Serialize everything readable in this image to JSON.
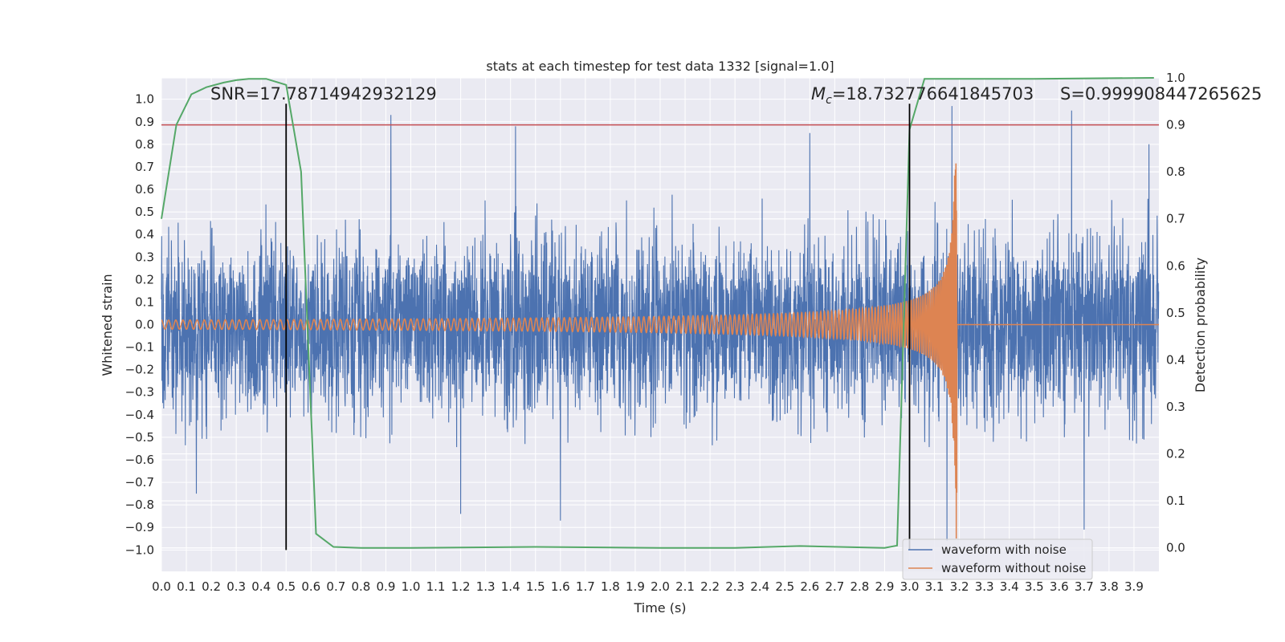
{
  "chart_data": {
    "type": "line",
    "title": "stats at each timestep for test data 1332 [signal=1.0]",
    "xlabel": "Time (s)",
    "ylabel": "Whitened strain",
    "y2label": "Detection probability",
    "xlim": [
      0.0,
      4.0
    ],
    "ylim": [
      -1.095,
      1.095
    ],
    "y2lim": [
      -0.05,
      1.0
    ],
    "x_ticks": [
      "0.0",
      "0.1",
      "0.2",
      "0.3",
      "0.4",
      "0.5",
      "0.6",
      "0.7",
      "0.8",
      "0.9",
      "1.0",
      "1.1",
      "1.2",
      "1.3",
      "1.4",
      "1.5",
      "1.6",
      "1.7",
      "1.8",
      "1.9",
      "2.0",
      "2.1",
      "2.2",
      "2.3",
      "2.4",
      "2.5",
      "2.6",
      "2.7",
      "2.8",
      "2.9",
      "3.0",
      "3.1",
      "3.2",
      "3.3",
      "3.4",
      "3.5",
      "3.6",
      "3.7",
      "3.8",
      "3.9"
    ],
    "y_ticks": [
      "1.0",
      "0.9",
      "0.8",
      "0.7",
      "0.6",
      "0.5",
      "0.4",
      "0.3",
      "0.2",
      "0.1",
      "0.0",
      "−0.1",
      "−0.2",
      "−0.3",
      "−0.4",
      "−0.5",
      "−0.6",
      "−0.7",
      "−0.8",
      "−0.9",
      "−1.0"
    ],
    "y2_ticks": [
      "1.0",
      "0.9",
      "0.8",
      "0.7",
      "0.6",
      "0.5",
      "0.4",
      "0.3",
      "0.2",
      "0.1",
      "0.0"
    ],
    "grid": true,
    "legend_position": "bottom-right",
    "series": [
      {
        "name": "waveform with noise",
        "color": "#4c72b0",
        "axis": "left",
        "description": "noise-dominated whitened strain, approx amplitude 0.2-0.6 with spikes near 0.9",
        "spikes": [
          [
            0.92,
            0.93
          ],
          [
            1.42,
            0.88
          ],
          [
            2.6,
            0.85
          ],
          [
            3.17,
            0.97
          ],
          [
            3.65,
            0.95
          ],
          [
            3.96,
            0.8
          ],
          [
            0.14,
            -0.75
          ],
          [
            1.2,
            -0.84
          ],
          [
            1.6,
            -0.87
          ],
          [
            3.15,
            -0.96
          ],
          [
            3.7,
            -0.91
          ]
        ]
      },
      {
        "name": "waveform without noise",
        "color": "#dd8452",
        "axis": "left",
        "description": "chirp: amplitude ~0.02 rising to ~0.95 at merger t=3.19 s, then flat 0",
        "merger_time": 3.19,
        "start_amplitude": 0.02,
        "peak_amplitude": 0.95
      },
      {
        "name": "detection probability",
        "color": "#55a868",
        "axis": "right",
        "x": [
          0.0,
          0.06,
          0.12,
          0.18,
          0.25,
          0.3,
          0.35,
          0.42,
          0.5,
          0.56,
          0.62,
          0.69,
          0.8,
          1.0,
          1.5,
          2.0,
          2.3,
          2.56,
          2.9,
          2.95,
          3.0,
          3.06,
          3.2,
          3.5,
          3.98
        ],
        "values": [
          0.7,
          0.9,
          0.965,
          0.98,
          0.99,
          0.995,
          0.998,
          0.998,
          0.985,
          0.8,
          0.03,
          0.002,
          0.0,
          0.0,
          0.002,
          0.0,
          0.0,
          0.004,
          0.0,
          0.005,
          0.89,
          0.998,
          0.998,
          0.998,
          1.0
        ]
      }
    ],
    "threshold_line": {
      "value": 0.9,
      "axis": "right",
      "color": "#c44e52"
    },
    "vertical_markers": [
      0.5,
      3.0
    ],
    "annotations": {
      "snr": "SNR=17.78714942932129",
      "mc_symbol": "M",
      "mc_sub": "c",
      "mc_value": "=18.732776641845703",
      "s_value": "S=0.999908447265625"
    },
    "legend": [
      "waveform with noise",
      "waveform without noise"
    ]
  }
}
